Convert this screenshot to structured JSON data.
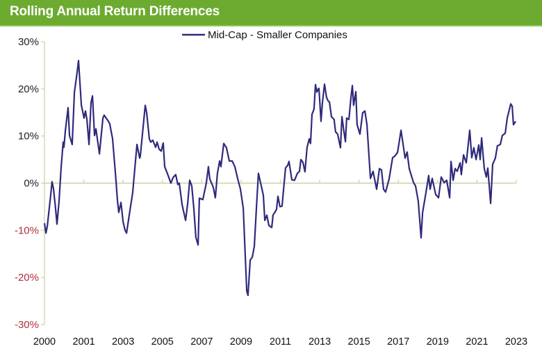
{
  "header": {
    "title": "Rolling Annual Return Differences"
  },
  "colors": {
    "header_bg": "#6cab2f",
    "line": "#2e2a7c",
    "axis": "#c9d39c",
    "negative_label": "#b0303c"
  },
  "chart_data": {
    "type": "line",
    "title": "Rolling Annual Return Differences",
    "xlabel": "",
    "ylabel": "",
    "ylim": [
      -30,
      30
    ],
    "xlim": [
      2000,
      2023
    ],
    "yticks": [
      "30%",
      "20%",
      "10%",
      "0%",
      "-10%",
      "-20%",
      "-30%"
    ],
    "ytick_values": [
      30,
      20,
      10,
      0,
      -10,
      -20,
      -30
    ],
    "xtick_labels": [
      "2000",
      "2001",
      "2003",
      "2005",
      "2007",
      "2009",
      "2011",
      "2013",
      "2015",
      "2017",
      "2019",
      "2021",
      "2023"
    ],
    "grid": false,
    "legend": "top-center",
    "series": [
      {
        "name": "Mid-Cap - Smaller Companies",
        "x": [
          2000.0,
          2000.07,
          2000.14,
          2000.3,
          2000.37,
          2000.44,
          2000.54,
          2000.61,
          2000.71,
          2000.81,
          2000.91,
          2000.95,
          2001.02,
          2001.15,
          2001.22,
          2001.35,
          2001.46,
          2001.59,
          2001.66,
          2001.8,
          2001.93,
          2002.0,
          2002.07,
          2002.17,
          2002.27,
          2002.34,
          2002.44,
          2002.51,
          2002.68,
          2002.85,
          2002.91,
          2003.12,
          2003.18,
          2003.32,
          2003.46,
          2003.56,
          2003.62,
          2003.73,
          2003.83,
          2003.93,
          2004.0,
          2004.17,
          2004.3,
          2004.51,
          2004.64,
          2004.67,
          2004.91,
          2004.98,
          2005.11,
          2005.18,
          2005.28,
          2005.42,
          2005.49,
          2005.59,
          2005.69,
          2005.79,
          2005.86,
          2005.96,
          2006.03,
          2006.16,
          2006.27,
          2006.4,
          2006.5,
          2006.57,
          2006.71,
          2006.88,
          2006.98,
          2007.08,
          2007.18,
          2007.28,
          2007.38,
          2007.49,
          2007.55,
          2007.72,
          2007.89,
          2007.99,
          2008.06,
          2008.23,
          2008.33,
          2008.43,
          2008.54,
          2008.6,
          2008.74,
          2008.87,
          2009.01,
          2009.15,
          2009.28,
          2009.42,
          2009.55,
          2009.69,
          2009.79,
          2009.86,
          2009.92,
          2010.03,
          2010.13,
          2010.23,
          2010.33,
          2010.43,
          2010.57,
          2010.67,
          2010.74,
          2010.84,
          2010.94,
          2011.08,
          2011.14,
          2011.31,
          2011.38,
          2011.48,
          2011.58,
          2011.75,
          2011.86,
          2011.92,
          2012.06,
          2012.19,
          2012.33,
          2012.43,
          2012.5,
          2012.6,
          2012.7,
          2012.8,
          2012.91,
          2012.97,
          2013.04,
          2013.14,
          2013.21,
          2013.28,
          2013.35,
          2013.38,
          2013.48,
          2013.55,
          2013.65,
          2013.75,
          2013.82,
          2013.89,
          2013.99,
          2014.12,
          2014.19,
          2014.29,
          2014.43,
          2014.5,
          2014.6,
          2014.67,
          2014.73,
          2014.84,
          2014.94,
          2015.01,
          2015.07,
          2015.18,
          2015.24,
          2015.38,
          2015.51,
          2015.62,
          2015.72,
          2015.89,
          2016.02,
          2016.19,
          2016.33,
          2016.43,
          2016.53,
          2016.63,
          2016.8,
          2016.97,
          2017.07,
          2017.21,
          2017.38,
          2017.58,
          2017.68,
          2017.78,
          2017.99,
          2018.09,
          2018.22,
          2018.36,
          2018.43,
          2018.6,
          2018.73,
          2018.8,
          2018.9,
          2019.07,
          2019.21,
          2019.34,
          2019.48,
          2019.61,
          2019.75,
          2019.82,
          2019.92,
          2020.02,
          2020.12,
          2020.26,
          2020.32,
          2020.43,
          2020.56,
          2020.73,
          2020.83,
          2020.93,
          2021.04,
          2021.17,
          2021.24,
          2021.31,
          2021.44,
          2021.54,
          2021.61,
          2021.75,
          2021.85,
          2021.98,
          2022.08,
          2022.22,
          2022.32,
          2022.46,
          2022.56,
          2022.73,
          2022.8,
          2022.86,
          2022.97
        ],
        "y": [
          -8.5,
          -10.6,
          -9.1,
          -2.6,
          0.3,
          -1.2,
          -5.3,
          -8.7,
          -3.8,
          3.2,
          8.7,
          7.6,
          11.2,
          16.0,
          10.1,
          8.2,
          19.3,
          23.4,
          26.0,
          16.5,
          13.8,
          15.3,
          13.5,
          8.2,
          17.1,
          18.5,
          10.1,
          11.5,
          6.2,
          13.8,
          14.4,
          13.1,
          12.6,
          9.4,
          2.1,
          -3.8,
          -6.2,
          -4.1,
          -8.2,
          -10.0,
          -10.6,
          -5.7,
          -2.1,
          8.2,
          5.3,
          5.7,
          16.5,
          15.0,
          9.4,
          8.7,
          9.1,
          7.6,
          8.7,
          7.2,
          6.8,
          8.5,
          3.5,
          2.4,
          1.6,
          0.0,
          1.2,
          1.8,
          -0.3,
          0.0,
          -4.6,
          -7.9,
          -4.3,
          0.6,
          -0.6,
          -5.3,
          -11.5,
          -13.1,
          -3.2,
          -3.5,
          0.0,
          3.5,
          0.9,
          -0.9,
          -3.1,
          2.1,
          4.7,
          3.5,
          8.4,
          7.5,
          4.7,
          4.7,
          3.5,
          0.9,
          -1.2,
          -5.3,
          -15.6,
          -22.9,
          -23.8,
          -16.3,
          -15.7,
          -13.4,
          -5.3,
          2.1,
          -0.6,
          -2.6,
          -7.9,
          -6.8,
          -9.0,
          -9.4,
          -6.8,
          -5.6,
          -2.8,
          -5.0,
          -4.9,
          3.2,
          3.8,
          4.6,
          0.7,
          0.6,
          2.1,
          2.5,
          5.0,
          4.4,
          2.4,
          7.6,
          9.4,
          8.4,
          14.6,
          15.7,
          20.9,
          19.3,
          20.0,
          20.1,
          13.1,
          17.1,
          21.0,
          18.2,
          17.5,
          17.2,
          14.1,
          13.5,
          10.9,
          10.4,
          7.5,
          14.1,
          10.9,
          8.8,
          13.8,
          13.5,
          18.2,
          20.7,
          16.5,
          19.4,
          12.4,
          10.4,
          14.9,
          15.3,
          12.4,
          1.0,
          2.5,
          -1.3,
          3.1,
          2.8,
          -1.3,
          -1.9,
          0.9,
          5.4,
          5.7,
          6.5,
          11.2,
          5.3,
          6.6,
          3.1,
          0.1,
          -0.6,
          -3.8,
          -11.6,
          -6.3,
          -1.9,
          1.6,
          -1.3,
          1.0,
          -2.4,
          -3.1,
          1.3,
          0.1,
          0.6,
          -3.1,
          4.6,
          0.6,
          3.1,
          2.5,
          4.3,
          1.8,
          6.0,
          4.3,
          11.2,
          5.4,
          7.5,
          5.0,
          8.1,
          5.0,
          9.6,
          3.1,
          1.3,
          3.2,
          -4.3,
          4.0,
          5.3,
          7.9,
          8.2,
          10.1,
          10.6,
          13.8,
          16.8,
          16.3,
          12.4,
          13.1
        ]
      }
    ]
  }
}
